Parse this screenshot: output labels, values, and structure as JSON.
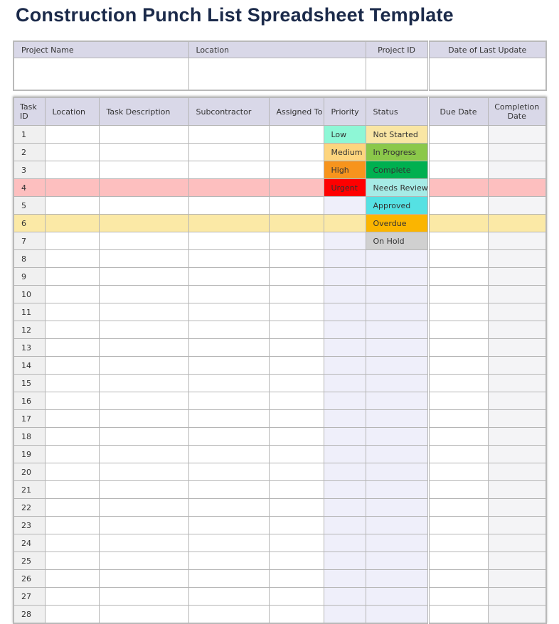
{
  "title": "Construction Punch List Spreadsheet Template",
  "project_header": {
    "labels": [
      "Project Name",
      "Location",
      "Project ID",
      "Date of Last Update"
    ],
    "values": [
      "",
      "",
      "",
      ""
    ]
  },
  "columns": [
    "Task ID",
    "Location",
    "Task Description",
    "Subcontractor",
    "Assigned To",
    "Priority",
    "Status",
    "Due Date",
    "Completion Date"
  ],
  "rows": [
    {
      "id": "1",
      "priority": "Low",
      "status": "Not Started"
    },
    {
      "id": "2",
      "priority": "Medium",
      "status": "In Progress"
    },
    {
      "id": "3",
      "priority": "High",
      "status": "Complete"
    },
    {
      "id": "4",
      "priority": "Urgent",
      "status": "Needs Review",
      "highlight": "#fdbfbf"
    },
    {
      "id": "5",
      "priority": "",
      "status": "Approved"
    },
    {
      "id": "6",
      "priority": "",
      "status": "Overdue",
      "highlight": "#fbe9a6"
    },
    {
      "id": "7",
      "priority": "",
      "status": "On Hold"
    },
    {
      "id": "8"
    },
    {
      "id": "9"
    },
    {
      "id": "10"
    },
    {
      "id": "11"
    },
    {
      "id": "12"
    },
    {
      "id": "13"
    },
    {
      "id": "14"
    },
    {
      "id": "15"
    },
    {
      "id": "16"
    },
    {
      "id": "17"
    },
    {
      "id": "18"
    },
    {
      "id": "19"
    },
    {
      "id": "20"
    },
    {
      "id": "21"
    },
    {
      "id": "22"
    },
    {
      "id": "23"
    },
    {
      "id": "24"
    },
    {
      "id": "25"
    },
    {
      "id": "26"
    },
    {
      "id": "27"
    },
    {
      "id": "28"
    }
  ],
  "priority_colors": {
    "Low": "#8ef7d6",
    "Medium": "#fdd57e",
    "High": "#f7941d",
    "Urgent": "#ff0000"
  },
  "status_colors": {
    "Not Started": "#f9e6a4",
    "In Progress": "#8bc84a",
    "Complete": "#00b050",
    "Needs Review": "#a6ebe6",
    "Approved": "#55e1e3",
    "Overdue": "#fbb500",
    "On Hold": "#d0d0d0"
  }
}
